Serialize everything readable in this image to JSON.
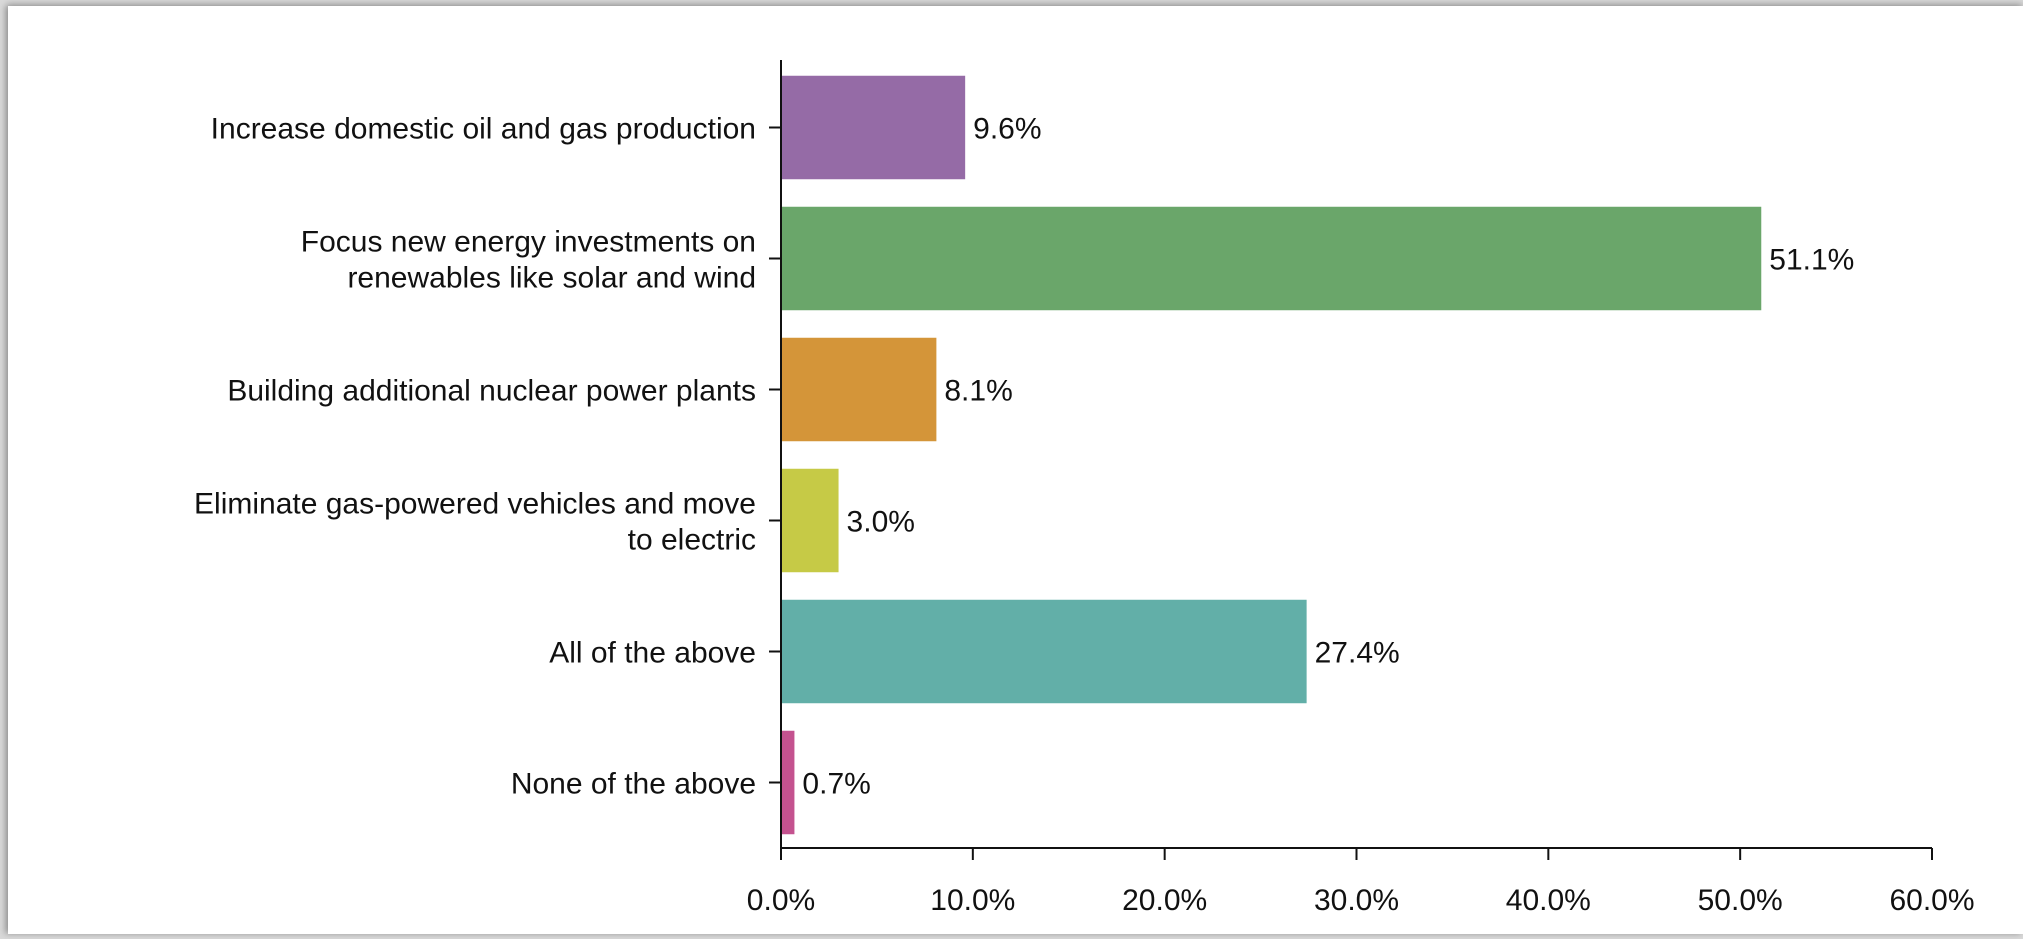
{
  "chart_data": {
    "type": "bar",
    "orientation": "horizontal",
    "categories": [
      [
        "Increase domestic oil and gas production"
      ],
      [
        "Focus new energy investments on",
        "renewables like solar and wind"
      ],
      [
        "Building additional nuclear power plants"
      ],
      [
        "Eliminate gas-powered vehicles and move",
        "to electric"
      ],
      [
        "All of the above"
      ],
      [
        "None of the above"
      ]
    ],
    "values": [
      9.6,
      51.1,
      8.1,
      3.0,
      27.4,
      0.7
    ],
    "value_labels": [
      "9.6%",
      "51.1%",
      "8.1%",
      "3.0%",
      "27.4%",
      "0.7%"
    ],
    "colors": [
      "#956ba6",
      "#6aa66a",
      "#d49539",
      "#c6ca46",
      "#62afa8",
      "#c4528f"
    ],
    "xlim": [
      0,
      60
    ],
    "ticks": [
      0,
      10,
      20,
      30,
      40,
      50,
      60
    ],
    "tick_labels": [
      "0.0%",
      "10.0%",
      "20.0%",
      "30.0%",
      "40.0%",
      "50.0%",
      "60.0%"
    ],
    "grid": false,
    "legend": "none"
  }
}
